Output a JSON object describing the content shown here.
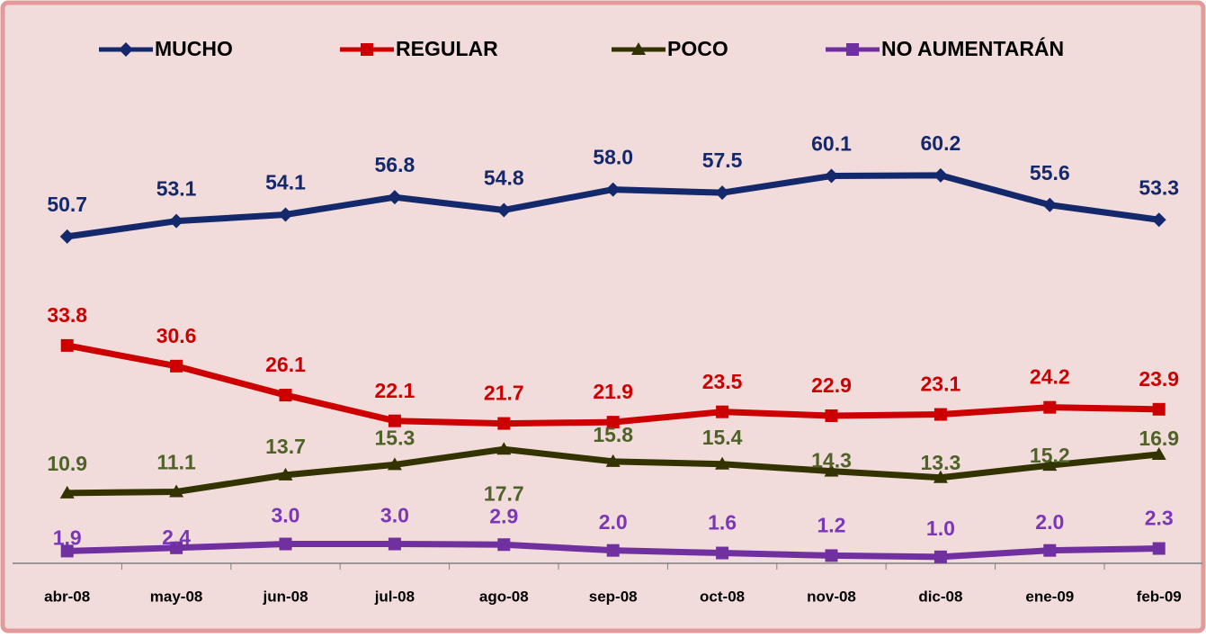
{
  "chart_data": {
    "type": "line",
    "categories": [
      "abr-08",
      "may-08",
      "jun-08",
      "jul-08",
      "ago-08",
      "sep-08",
      "oct-08",
      "nov-08",
      "dic-08",
      "ene-09",
      "feb-09"
    ],
    "series": [
      {
        "name": "MUCHO",
        "color": "#14296b",
        "marker": "diamond",
        "values": [
          50.7,
          53.1,
          54.1,
          56.8,
          54.8,
          58.0,
          57.5,
          60.1,
          60.2,
          55.6,
          53.3
        ],
        "value_labels": [
          "50.7",
          "53.1",
          "54.1",
          "56.8",
          "54.8",
          "58.0",
          "57.5",
          "60.1",
          "60.2",
          "55.6",
          "53.3"
        ]
      },
      {
        "name": "REGULAR",
        "color": "#cc0000",
        "marker": "square",
        "values": [
          33.8,
          30.6,
          26.1,
          22.1,
          21.7,
          21.9,
          23.5,
          22.9,
          23.1,
          24.2,
          23.9
        ],
        "value_labels": [
          "33.8",
          "30.6",
          "26.1",
          "22.1",
          "21.7",
          "21.9",
          "23.5",
          "22.9",
          "23.1",
          "24.2",
          "23.9"
        ]
      },
      {
        "name": "POCO",
        "color": "#333300",
        "label_color": "#4f6228",
        "marker": "triangle",
        "values": [
          10.9,
          11.1,
          13.7,
          15.3,
          17.7,
          15.8,
          15.4,
          14.3,
          13.3,
          15.2,
          16.9
        ],
        "value_labels": [
          "10.9",
          "11.1",
          "13.7",
          "15.3",
          "17.7",
          "15.8",
          "15.4",
          "14.3",
          "13.3",
          "15.2",
          "16.9"
        ]
      },
      {
        "name": "NO AUMENTARÁN",
        "color": "#7030a0",
        "label_color": "#7a38b8",
        "marker": "square",
        "values": [
          1.9,
          2.4,
          3.0,
          3.0,
          2.9,
          2.0,
          1.6,
          1.2,
          1.0,
          2.0,
          2.3
        ],
        "value_labels": [
          "1.9",
          "2.4",
          "3.0",
          "3.0",
          "2.9",
          "2.0",
          "1.6",
          "1.2",
          "1.0",
          "2.0",
          "2.3"
        ]
      }
    ],
    "ylim": [
      0,
      80
    ],
    "legend": "top"
  }
}
